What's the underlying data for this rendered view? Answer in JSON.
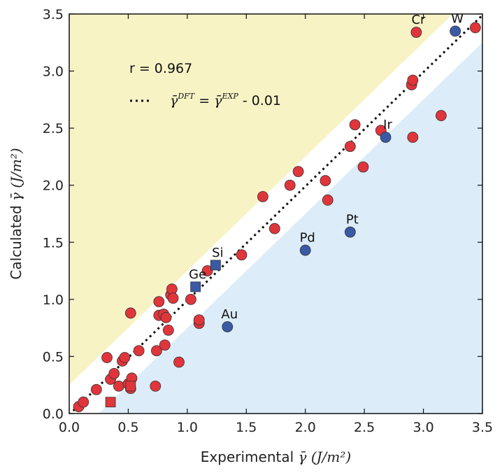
{
  "chart_data": {
    "type": "scatter",
    "xlim": [
      0.0,
      3.5
    ],
    "ylim": [
      0.0,
      3.5
    ],
    "xticks": [
      "0.0",
      "0.5",
      "1.0",
      "1.5",
      "2.0",
      "2.5",
      "3.0",
      "3.5"
    ],
    "yticks": [
      "0.0",
      "0.5",
      "1.0",
      "1.5",
      "2.0",
      "2.5",
      "3.0",
      "3.5"
    ],
    "xlabel_prefix": "Experimental",
    "xlabel_math": "γ̄ (J/m²)",
    "ylabel_prefix": "Calculated",
    "ylabel_math": "γ̄ (J/m²)",
    "grid": false,
    "annotation_r": "r = 0.967",
    "legend": {
      "lhs": "γ̄",
      "lhs_sup": "DFT",
      "eq": "=",
      "rhs": "γ̄",
      "rhs_sup": "EXP",
      "offset": "- 0.01"
    },
    "fit_line": {
      "slope": 1.0,
      "intercept": -0.01,
      "style": "dotted"
    },
    "regions": [
      {
        "name": "over-estimated band",
        "color": "#f8f3c5",
        "lower_offset": 0.25
      },
      {
        "name": "under-estimated band",
        "color": "#dcedf9",
        "upper_offset": -0.25
      }
    ],
    "colors": {
      "red": "#e0353b",
      "blue": "#3a5aa5",
      "edge": "#333333"
    },
    "series": [
      {
        "marker": "circle",
        "color": "red",
        "points": [
          [
            0.08,
            0.06
          ],
          [
            0.12,
            0.1
          ],
          [
            0.23,
            0.21
          ],
          [
            0.32,
            0.49
          ],
          [
            0.35,
            0.3
          ],
          [
            0.38,
            0.35
          ],
          [
            0.42,
            0.24
          ],
          [
            0.45,
            0.46
          ],
          [
            0.47,
            0.49
          ],
          [
            0.5,
            0.26
          ],
          [
            0.52,
            0.22
          ],
          [
            0.53,
            0.31
          ],
          [
            0.52,
            0.88
          ],
          [
            0.59,
            0.55
          ],
          [
            0.73,
            0.24
          ],
          [
            0.74,
            0.55
          ],
          [
            0.76,
            0.86
          ],
          [
            0.76,
            0.98
          ],
          [
            0.8,
            0.87
          ],
          [
            0.81,
            0.6
          ],
          [
            0.82,
            0.84
          ],
          [
            0.84,
            0.73
          ],
          [
            0.86,
            1.04
          ],
          [
            0.87,
            1.09
          ],
          [
            0.88,
            1.01
          ],
          [
            0.93,
            0.45
          ],
          [
            1.03,
            1.0
          ],
          [
            1.1,
            0.79
          ],
          [
            1.1,
            0.82
          ],
          [
            1.17,
            1.25
          ],
          [
            1.46,
            1.39
          ],
          [
            1.64,
            1.9
          ],
          [
            1.74,
            1.62
          ],
          [
            1.87,
            2.0
          ],
          [
            1.94,
            2.12
          ],
          [
            2.17,
            2.04
          ],
          [
            2.19,
            1.87
          ],
          [
            2.38,
            2.34
          ],
          [
            2.42,
            2.53
          ],
          [
            2.49,
            2.16
          ],
          [
            2.64,
            2.48
          ],
          [
            2.9,
            2.88
          ],
          [
            2.91,
            2.92
          ],
          [
            2.91,
            2.42
          ],
          [
            2.94,
            3.34
          ],
          [
            3.15,
            2.61
          ],
          [
            3.44,
            3.38
          ]
        ]
      },
      {
        "marker": "square",
        "color": "red",
        "points": [
          [
            0.35,
            0.1
          ],
          [
            0.52,
            0.24
          ]
        ]
      },
      {
        "marker": "circle",
        "color": "blue",
        "points": [
          [
            1.34,
            0.76
          ],
          [
            2.0,
            1.43
          ],
          [
            2.38,
            1.59
          ],
          [
            2.68,
            2.42
          ],
          [
            3.27,
            3.35
          ]
        ]
      },
      {
        "marker": "square",
        "color": "blue",
        "points": [
          [
            1.07,
            1.11
          ],
          [
            1.24,
            1.3
          ]
        ]
      }
    ],
    "point_labels": [
      {
        "text": "Cr",
        "x": 2.94,
        "y": 3.34
      },
      {
        "text": "W",
        "x": 3.27,
        "y": 3.35
      },
      {
        "text": "Ir",
        "x": 2.68,
        "y": 2.42
      },
      {
        "text": "Pt",
        "x": 2.38,
        "y": 1.59
      },
      {
        "text": "Pd",
        "x": 2.0,
        "y": 1.43
      },
      {
        "text": "Si",
        "x": 1.24,
        "y": 1.3
      },
      {
        "text": "Ge",
        "x": 1.07,
        "y": 1.11
      },
      {
        "text": "Au",
        "x": 1.34,
        "y": 0.76
      }
    ]
  }
}
